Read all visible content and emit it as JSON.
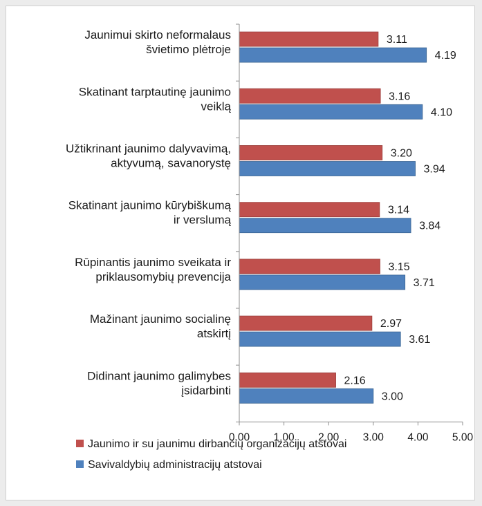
{
  "chart_data": {
    "type": "bar",
    "orientation": "horizontal",
    "categories": [
      [
        "Jaunimui skirto neformalaus",
        "švietimo plėtroje"
      ],
      [
        "Skatinant tarptautinę jaunimo",
        "veiklą"
      ],
      [
        "Užtikrinant jaunimo dalyvavimą,",
        "aktyvumą, savanorystę"
      ],
      [
        "Skatinant jaunimo kūrybiškumą",
        "ir verslumą"
      ],
      [
        "Rūpinantis jaunimo sveikata ir",
        "priklausomybių prevencija"
      ],
      [
        "Mažinant jaunimo socialinę",
        "atskirtį"
      ],
      [
        "Didinant jaunimo galimybes",
        "įsidarbinti"
      ]
    ],
    "series": [
      {
        "name": "Jaunimo ir su jaunimu dirbančių organizacijų atstovai",
        "color": "#c0504d",
        "values": [
          3.11,
          3.16,
          3.2,
          3.14,
          3.15,
          2.97,
          2.16
        ],
        "labels": [
          "3.11",
          "3.16",
          "3.20",
          "3.14",
          "3.15",
          "2.97",
          "2.16"
        ]
      },
      {
        "name": "Savivaldybių administracijų atstovai",
        "color": "#4f81bd",
        "values": [
          4.19,
          4.1,
          3.94,
          3.84,
          3.71,
          3.61,
          3.0
        ],
        "labels": [
          "4.19",
          "4.10",
          "3.94",
          "3.84",
          "3.71",
          "3.61",
          "3.00"
        ]
      }
    ],
    "xlim": [
      0,
      5
    ],
    "ticks": [
      "0.00",
      "1.00",
      "2.00",
      "3.00",
      "4.00",
      "5.00"
    ],
    "grid": false,
    "legend_position": "bottom"
  }
}
